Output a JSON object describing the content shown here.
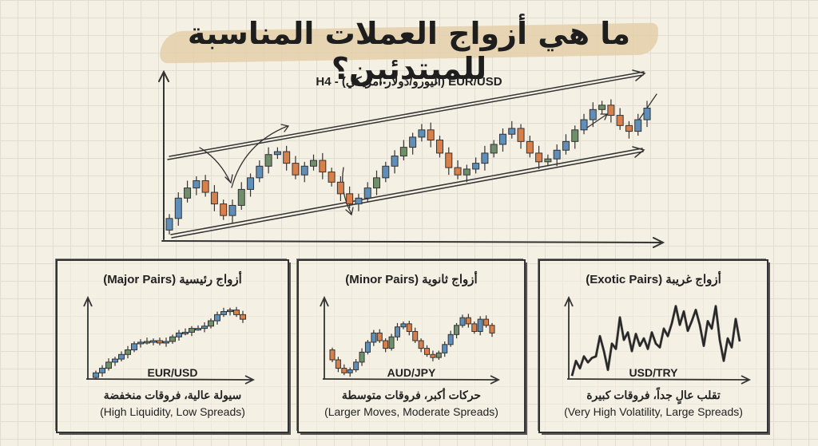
{
  "title": "ما هي أزواج العملات المناسبة للمبتدئين؟",
  "colors": {
    "up_blue": "#5f8fb8",
    "up_green": "#6f8f6a",
    "down": "#d9804a",
    "brush": "#e3cfa9"
  },
  "chart_data": [
    {
      "type": "candlestick",
      "title": "EUR/USD (اليورو/دولار أمريكي) - H4",
      "trend": "ascending channel",
      "closes": [
        10,
        24,
        31,
        36,
        28,
        20,
        12,
        19,
        30,
        38,
        46,
        54,
        56,
        48,
        40,
        46,
        50,
        42,
        35,
        27,
        20,
        24,
        31,
        38,
        46,
        53,
        59,
        66,
        71,
        64,
        55,
        45,
        40,
        44,
        48,
        55,
        61,
        68,
        72,
        63,
        55,
        49,
        51,
        57,
        63,
        71,
        78,
        85,
        88,
        81,
        74,
        70,
        78,
        86
      ],
      "open_start": 2
    },
    {
      "type": "candlestick",
      "title": "أزواج رئيسية (Major Pairs)",
      "pair": "EUR/USD",
      "desc_ar": "سيولة عالية، فروقات منخفضة",
      "desc_en": "(High Liquidity, Low Spreads)",
      "closes": [
        8,
        14,
        22,
        26,
        32,
        38,
        46,
        48,
        49,
        50,
        47,
        49,
        55,
        60,
        61,
        66,
        66,
        69,
        76,
        84,
        88,
        90,
        84,
        78
      ],
      "open_start": 2
    },
    {
      "type": "candlestick",
      "title": "أزواج ثانوية (Minor Pairs)",
      "pair": "AUD/JPY",
      "desc_ar": "حركات أكبر، فروقات متوسطة",
      "desc_en": "(Larger Moves, Moderate Spreads)",
      "closes": [
        25,
        14,
        8,
        12,
        22,
        35,
        48,
        60,
        50,
        40,
        55,
        68,
        72,
        62,
        50,
        40,
        32,
        28,
        34,
        45,
        58,
        70,
        80,
        72,
        62,
        78,
        70,
        60
      ],
      "open_start": 38
    },
    {
      "type": "line",
      "title": "أزواج غريبة (Exotic Pairs)",
      "pair": "USD/TRY",
      "desc_ar": "تقلب عالٍ جداً، فروقات كبيرة",
      "desc_en": "(Very High Volatility, Large Spreads)",
      "values": [
        2,
        22,
        12,
        28,
        20,
        26,
        28,
        55,
        35,
        10,
        45,
        38,
        80,
        50,
        60,
        35,
        58,
        42,
        52,
        38,
        60,
        45,
        40,
        65,
        55,
        72,
        95,
        70,
        88,
        62,
        75,
        90,
        70,
        42,
        75,
        65,
        95,
        50,
        22,
        52,
        40,
        78,
        48
      ]
    }
  ]
}
